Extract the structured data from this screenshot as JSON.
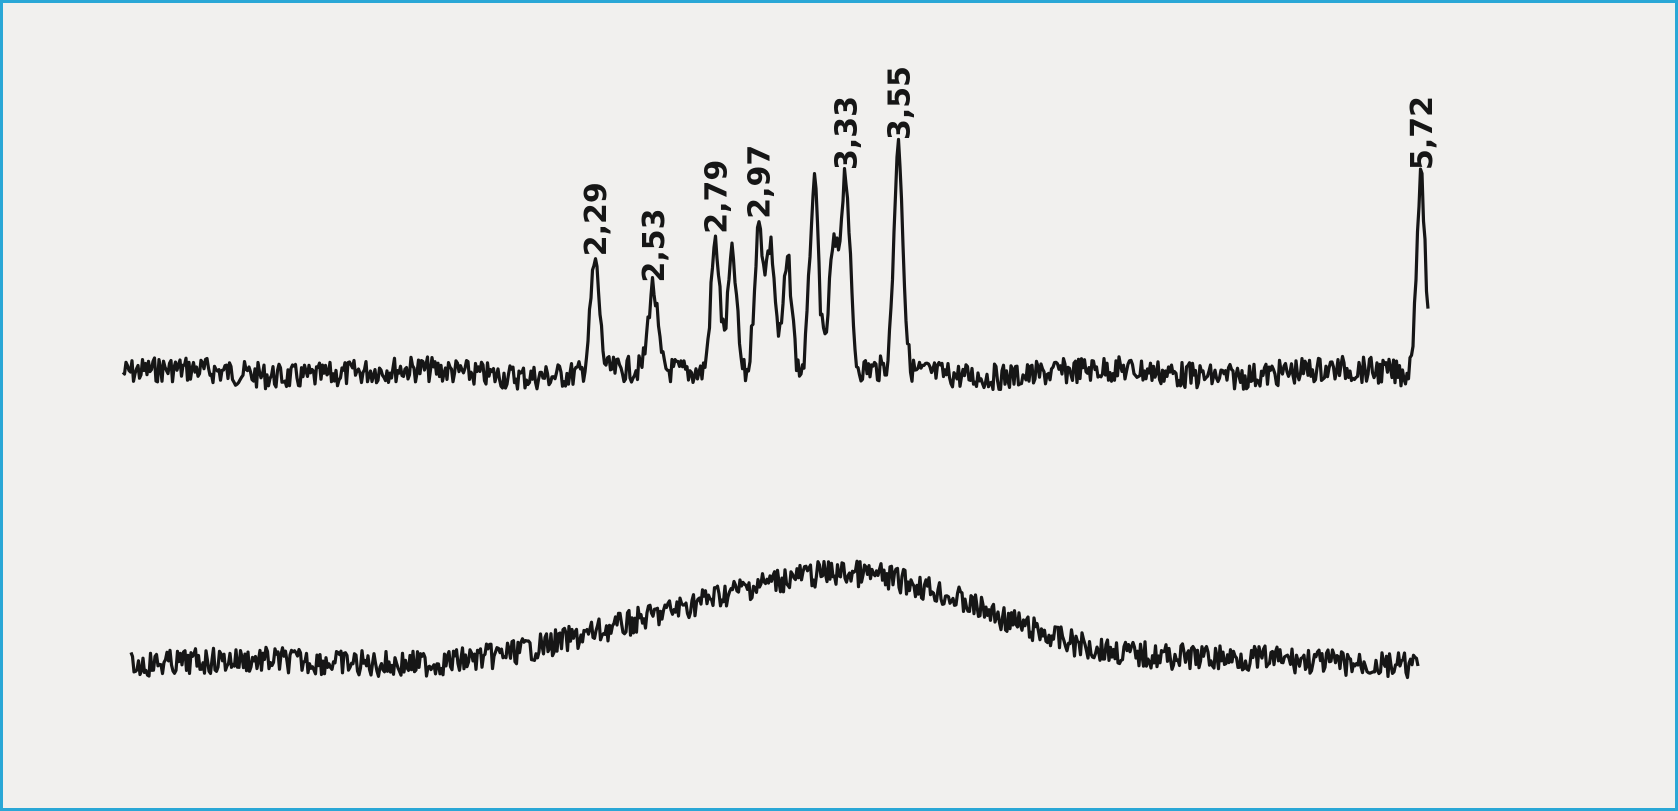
{
  "chart_data": [
    {
      "type": "line",
      "title": "",
      "xlabel": "",
      "ylabel": "",
      "grid": false,
      "legend": "none",
      "line_color": "#161616",
      "background_color": "#f1f0ee",
      "peaks": [
        {
          "label": "2,29",
          "x": 2.29,
          "height": 1.45
        },
        {
          "label": "2,53",
          "x": 2.53,
          "height": 1.1
        },
        {
          "label": "2,79",
          "x": 2.79,
          "height": 1.75
        },
        {
          "label": "2,97",
          "x": 2.97,
          "height": 1.95
        },
        {
          "label": "3,33",
          "x": 3.33,
          "height": 2.6
        },
        {
          "label": "3,55",
          "x": 3.55,
          "height": 3.0
        },
        {
          "label": "5,72",
          "x": 5.72,
          "height": 2.6
        }
      ],
      "unlabeled_peaks": [
        {
          "x": 2.86,
          "height": 1.6
        },
        {
          "x": 3.02,
          "height": 1.7
        },
        {
          "x": 3.09,
          "height": 1.5
        },
        {
          "x": 3.2,
          "height": 2.5
        },
        {
          "x": 3.28,
          "height": 1.6
        }
      ]
    },
    {
      "type": "line",
      "title": "",
      "xlabel": "",
      "ylabel": "",
      "grid": false,
      "legend": "none",
      "line_color": "#161616",
      "description_of_shape": "broad hump",
      "hump_center": 3.25,
      "hump_height": 1.2
    }
  ]
}
